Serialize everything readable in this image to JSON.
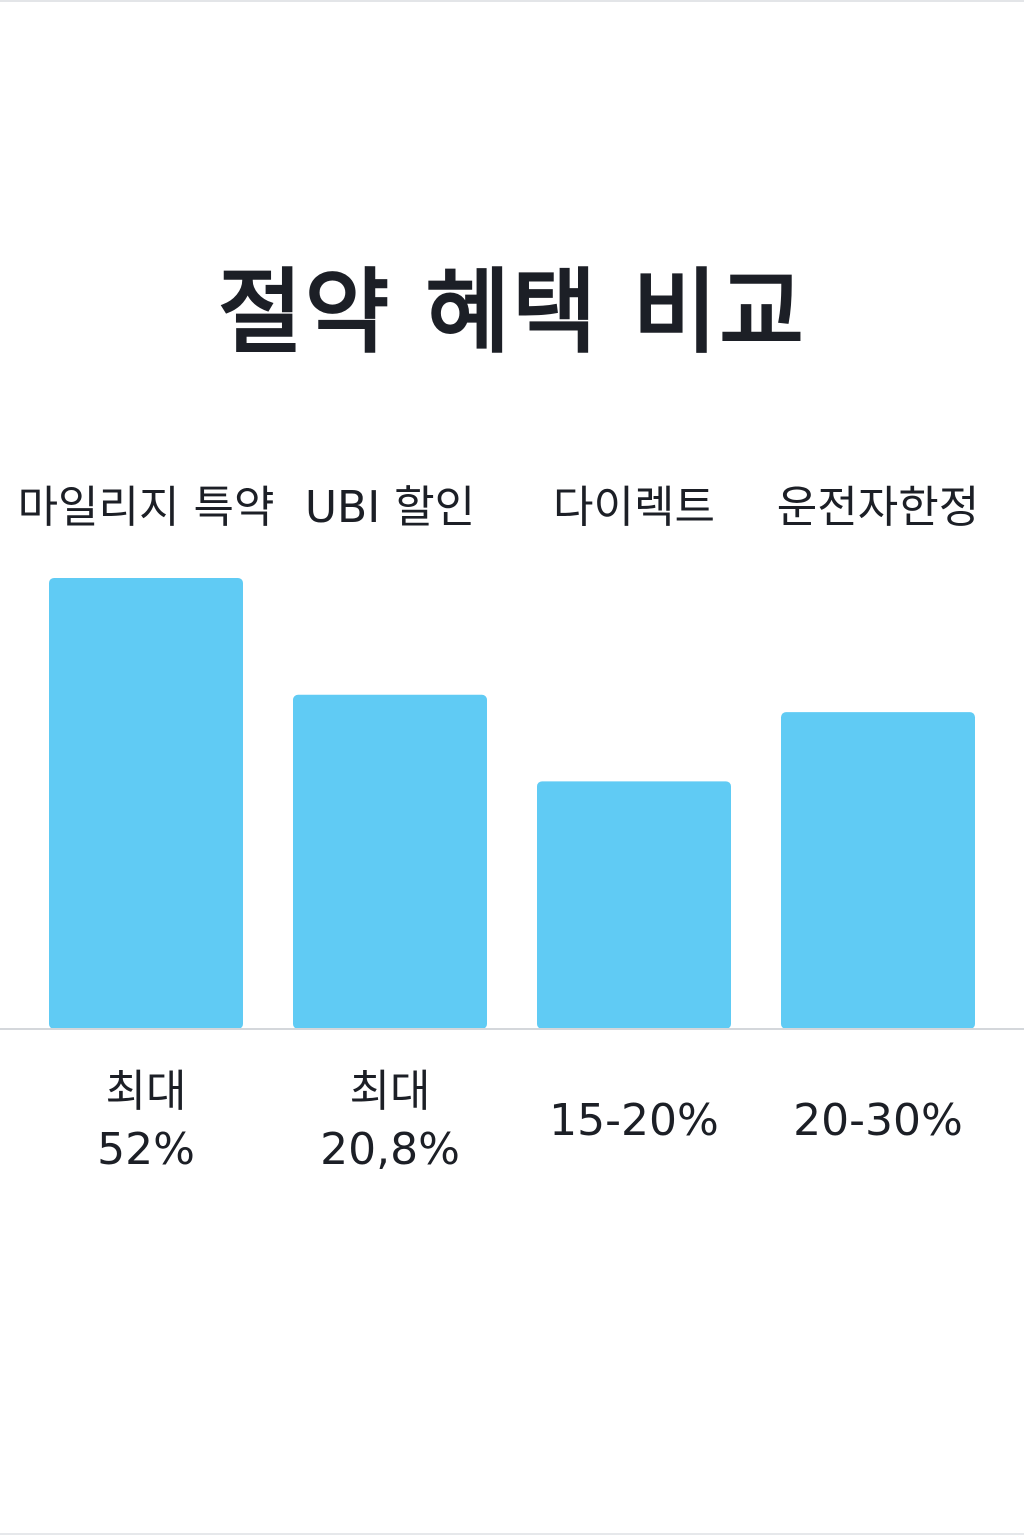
{
  "chart_data": {
    "type": "bar",
    "title": "절약 혜택 비교",
    "categories": [
      "마일리지 특약",
      "UBI 할인",
      "다이렉트",
      "운전자한정"
    ],
    "values": [
      52,
      38.5,
      28.5,
      36.5
    ],
    "value_labels": [
      [
        "최대",
        "52%"
      ],
      [
        "최대",
        "20,8%"
      ],
      [
        "15-20%"
      ],
      [
        "20-30%"
      ]
    ],
    "xlabel": "",
    "ylabel": "",
    "ylim": [
      0,
      55
    ],
    "grid": false,
    "legend": "none",
    "bar_color": "#60cbf4",
    "baseline_color": "#d4d7db"
  }
}
